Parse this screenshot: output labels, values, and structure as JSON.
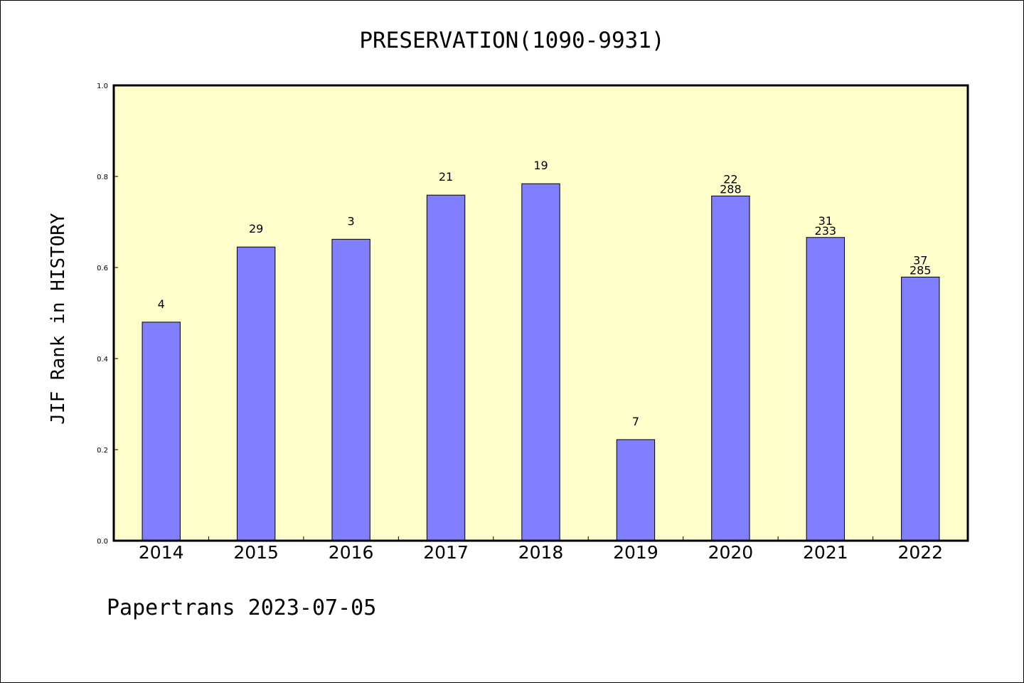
{
  "chart_data": {
    "type": "bar",
    "title": "PRESERVATION(1090-9931)",
    "ylabel": "JIF Rank in HISTORY",
    "xlabel": "",
    "ylim": [
      0.0,
      1.0
    ],
    "yticks": [
      "0.0",
      "0.2",
      "0.4",
      "0.6",
      "0.8",
      "1.0"
    ],
    "categories": [
      "2014",
      "2015",
      "2016",
      "2017",
      "2018",
      "2019",
      "2020",
      "2021",
      "2022"
    ],
    "values": [
      0.48,
      0.645,
      0.662,
      0.759,
      0.784,
      0.222,
      0.757,
      0.666,
      0.579
    ],
    "bar_labels": [
      [
        "4"
      ],
      [
        "29"
      ],
      [
        "3"
      ],
      [
        "21"
      ],
      [
        "19"
      ],
      [
        "7"
      ],
      [
        "22",
        "288"
      ],
      [
        "31",
        "233"
      ],
      [
        "37",
        "285"
      ]
    ],
    "grid": false,
    "plot_background": "#ffffcc",
    "bar_color": "#8080ff",
    "footer": "Papertrans 2023-07-05"
  }
}
